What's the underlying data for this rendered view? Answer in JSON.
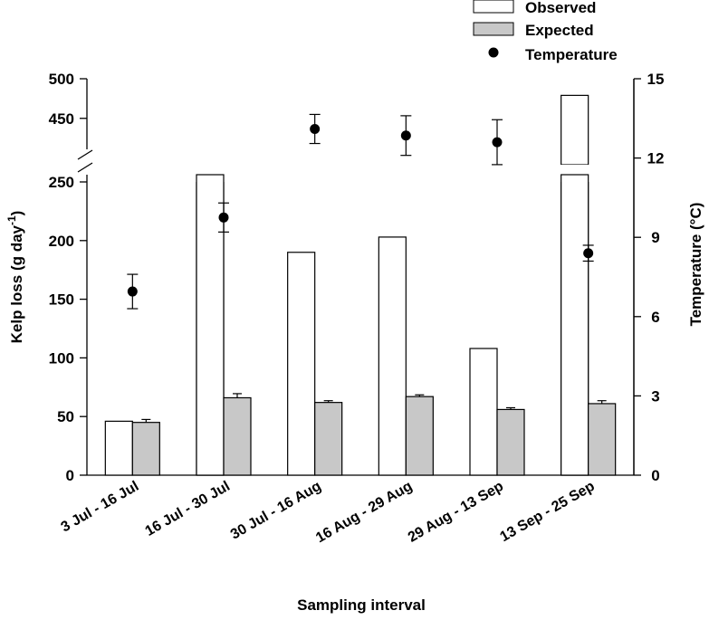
{
  "chart_data": {
    "type": "bar",
    "title": "",
    "xlabel": "Sampling interval",
    "ylabel": "Kelp loss (g day",
    "ylabel_sup": "-1",
    "ylabel_close": ")",
    "y2label": "Temperature (°C)",
    "categories": [
      "3 Jul - 16 Jul",
      "16 Jul - 30 Jul",
      "30 Jul - 16 Aug",
      "16 Aug - 29 Aug",
      "29 Aug - 13 Sep",
      "13 Sep - 25 Sep"
    ],
    "y_axis": {
      "segments": [
        [
          0,
          250
        ],
        [
          420,
          500
        ]
      ],
      "ticks_lower": [
        0,
        50,
        100,
        150,
        200,
        250
      ],
      "ticks_upper": [
        450,
        500
      ],
      "break": true
    },
    "y2_axis": {
      "ylim": [
        0,
        15
      ],
      "ticks": [
        0,
        3,
        6,
        9,
        12,
        15
      ]
    },
    "series": [
      {
        "name": "Observed",
        "kind": "bar",
        "values": [
          46,
          254,
          190,
          203,
          108,
          479
        ],
        "color": "#ffffff"
      },
      {
        "name": "Expected",
        "kind": "bar",
        "values": [
          45,
          66,
          62,
          67,
          56,
          61
        ],
        "errors": [
          2.5,
          3.5,
          1.5,
          1.5,
          1.5,
          2.5
        ],
        "color": "#c8c8c8"
      },
      {
        "name": "Temperature",
        "kind": "point",
        "axis": "right",
        "values": [
          6.95,
          9.75,
          13.1,
          12.85,
          12.6,
          8.4
        ],
        "errors": [
          0.65,
          0.55,
          0.55,
          0.75,
          0.85,
          0.3
        ],
        "color": "#000000"
      }
    ],
    "legend": {
      "position": "top-right"
    },
    "grid": false
  }
}
